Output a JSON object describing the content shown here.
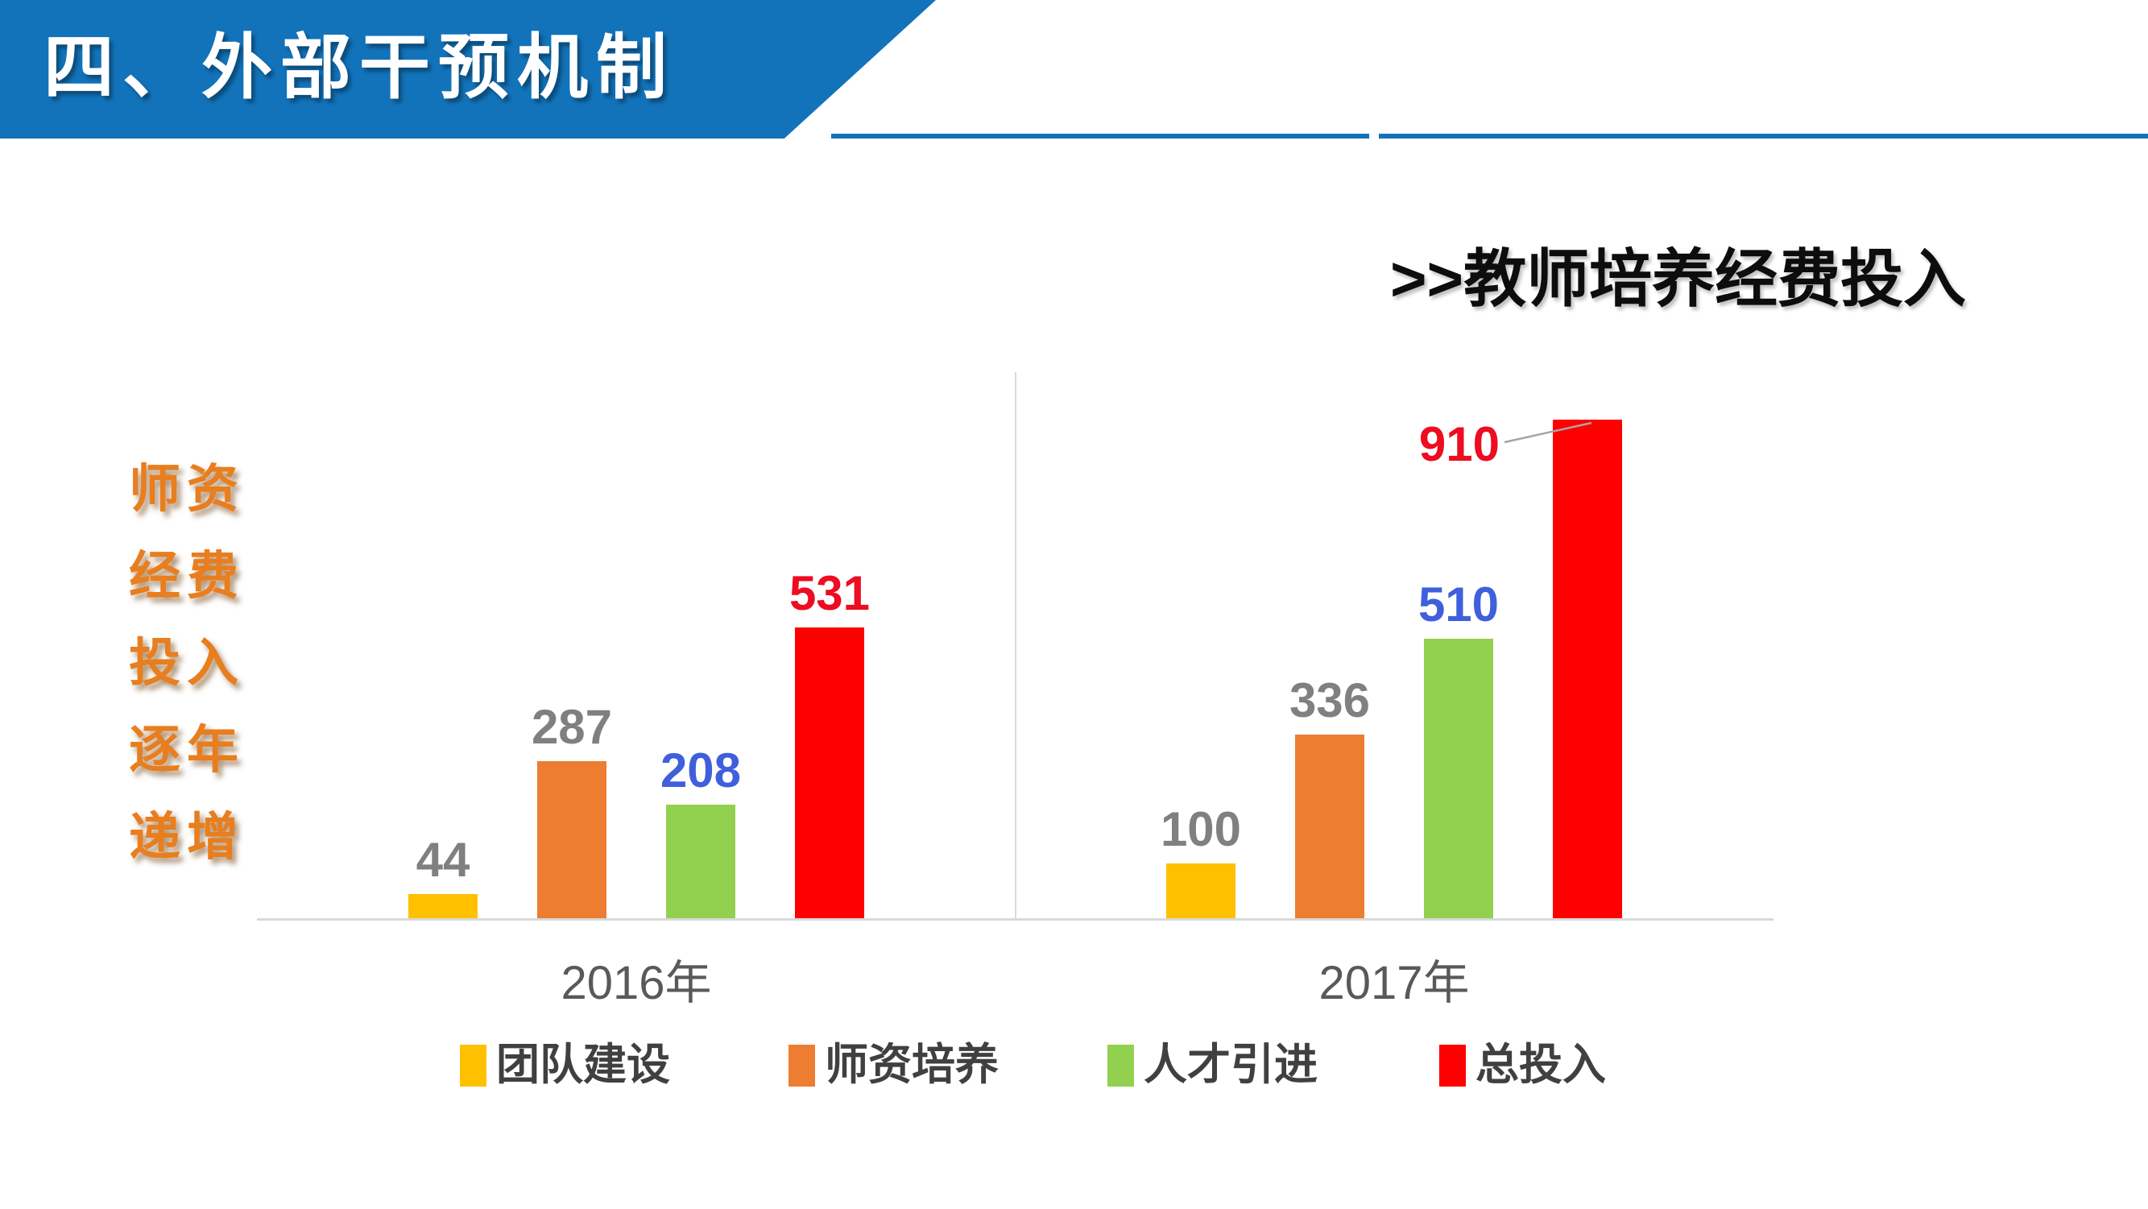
{
  "slide": {
    "banner": {
      "title": "四、外部干预机制",
      "color": "#1273BA"
    },
    "side_note": {
      "lines": [
        "师资",
        "经费",
        "投入",
        "逐年",
        "递增"
      ],
      "color": "#E87E1E"
    }
  },
  "chart_data": {
    "type": "bar",
    "title": ">>教师培养经费投入",
    "categories": [
      "2016年",
      "2017年"
    ],
    "series": [
      {
        "name": "团队建设",
        "color": "#FFC000",
        "label_color": "#808080",
        "values": [
          44,
          100
        ]
      },
      {
        "name": "师资培养",
        "color": "#ED7D31",
        "label_color": "#808080",
        "values": [
          287,
          336
        ]
      },
      {
        "name": "人才引进",
        "color": "#92D050",
        "label_color": "#3F5FDD",
        "values": [
          208,
          510
        ]
      },
      {
        "name": "总投入",
        "color": "#FF0000",
        "label_color": "#ED0C20",
        "values": [
          531,
          910
        ]
      }
    ],
    "ylim": [
      0,
      960
    ],
    "grid": false,
    "legend_position": "bottom",
    "value_labels": true,
    "callout": {
      "category_index": 1,
      "series_index": 3,
      "value": 910
    }
  }
}
